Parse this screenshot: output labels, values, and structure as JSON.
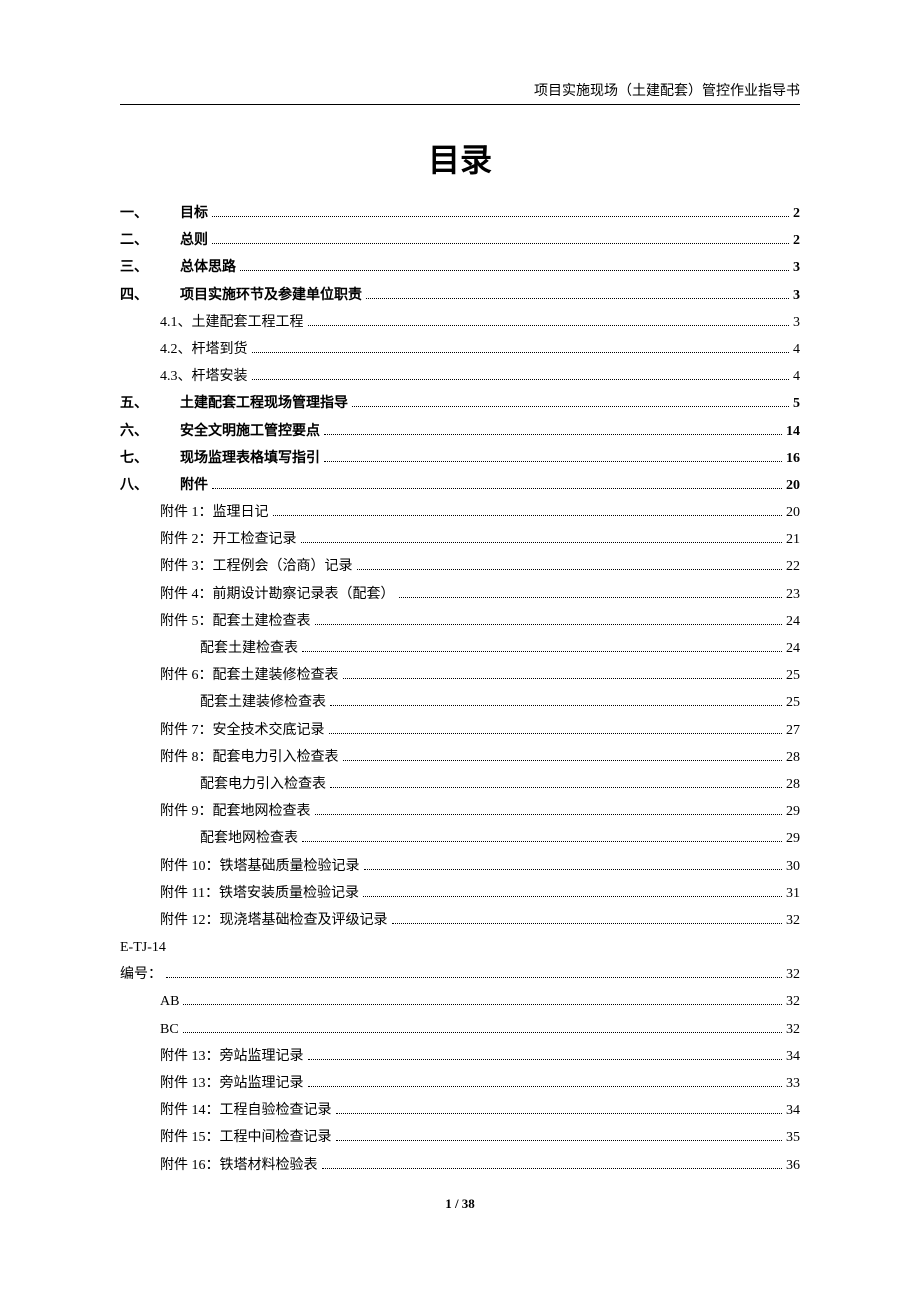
{
  "header": "项目实施现场（土建配套）管控作业指导书",
  "title": "目录",
  "footer": "1 / 38",
  "toc": [
    {
      "indent": 0,
      "bold": true,
      "prefix": "一、",
      "label": "目标",
      "page": "2"
    },
    {
      "indent": 0,
      "bold": true,
      "prefix": "二、",
      "label": "总则",
      "page": "2"
    },
    {
      "indent": 0,
      "bold": true,
      "prefix": "三、",
      "label": "总体思路",
      "page": "3"
    },
    {
      "indent": 0,
      "bold": true,
      "prefix": "四、",
      "label": "项目实施环节及参建单位职责",
      "page": "3"
    },
    {
      "indent": 1,
      "bold": false,
      "prefix": "",
      "label": "4.1、土建配套工程工程",
      "page": "3"
    },
    {
      "indent": 1,
      "bold": false,
      "prefix": "",
      "label": "4.2、杆塔到货",
      "page": "4"
    },
    {
      "indent": 1,
      "bold": false,
      "prefix": "",
      "label": "4.3、杆塔安装",
      "page": "4"
    },
    {
      "indent": 0,
      "bold": true,
      "prefix": "五、",
      "label": "土建配套工程现场管理指导",
      "page": "5"
    },
    {
      "indent": 0,
      "bold": true,
      "prefix": "六、",
      "label": "安全文明施工管控要点",
      "page": "14"
    },
    {
      "indent": 0,
      "bold": true,
      "prefix": "七、",
      "label": "现场监理表格填写指引",
      "page": "16"
    },
    {
      "indent": 0,
      "bold": true,
      "prefix": "八、",
      "label": "附件",
      "page": "20"
    },
    {
      "indent": 1,
      "bold": false,
      "prefix": "",
      "label": "附件 1：监理日记",
      "page": "20"
    },
    {
      "indent": 1,
      "bold": false,
      "prefix": "",
      "label": "附件 2：开工检查记录",
      "page": "21"
    },
    {
      "indent": 1,
      "bold": false,
      "prefix": "",
      "label": "附件 3：工程例会（洽商）记录",
      "page": "22"
    },
    {
      "indent": 1,
      "bold": false,
      "prefix": "",
      "label": "附件 4：前期设计勘察记录表（配套）",
      "page": "23"
    },
    {
      "indent": 1,
      "bold": false,
      "prefix": "",
      "label": "附件 5：配套土建检查表",
      "page": "24"
    },
    {
      "indent": 2,
      "bold": false,
      "prefix": "",
      "label": "配套土建检查表",
      "page": "24"
    },
    {
      "indent": 1,
      "bold": false,
      "prefix": "",
      "label": "附件 6：配套土建装修检查表",
      "page": "25"
    },
    {
      "indent": 2,
      "bold": false,
      "prefix": "",
      "label": "配套土建装修检查表",
      "page": "25"
    },
    {
      "indent": 1,
      "bold": false,
      "prefix": "",
      "label": "附件 7：安全技术交底记录",
      "page": "27"
    },
    {
      "indent": 1,
      "bold": false,
      "prefix": "",
      "label": "附件 8：配套电力引入检查表",
      "page": "28"
    },
    {
      "indent": 2,
      "bold": false,
      "prefix": "",
      "label": "配套电力引入检查表",
      "page": "28"
    },
    {
      "indent": 1,
      "bold": false,
      "prefix": "",
      "label": "附件 9：配套地网检查表",
      "page": "29"
    },
    {
      "indent": 2,
      "bold": false,
      "prefix": "",
      "label": "配套地网检查表",
      "page": "29"
    },
    {
      "indent": 1,
      "bold": false,
      "prefix": "",
      "label": "附件 10：铁塔基础质量检验记录",
      "page": "30"
    },
    {
      "indent": 1,
      "bold": false,
      "prefix": "",
      "label": "附件 11：铁塔安装质量检验记录",
      "page": "31"
    },
    {
      "indent": 1,
      "bold": false,
      "prefix": "",
      "label": "附件 12：现浇塔基础检查及评级记录",
      "page": "32"
    },
    {
      "indent": 0,
      "bold": false,
      "prefix": "",
      "label": "E-TJ-14",
      "page": "",
      "nodots": true
    },
    {
      "indent": 0,
      "bold": false,
      "prefix": "",
      "label": "编号：",
      "page": "32"
    },
    {
      "indent": 1,
      "bold": false,
      "prefix": "",
      "label": "AB",
      "page": "32"
    },
    {
      "indent": 1,
      "bold": false,
      "prefix": "",
      "label": "BC",
      "page": "32"
    },
    {
      "indent": 1,
      "bold": false,
      "prefix": "",
      "label": "附件 13：旁站监理记录",
      "page": "34"
    },
    {
      "indent": 1,
      "bold": false,
      "prefix": "",
      "label": "附件 13：旁站监理记录",
      "page": "33"
    },
    {
      "indent": 1,
      "bold": false,
      "prefix": "",
      "label": "附件 14：工程自验检查记录",
      "page": "34"
    },
    {
      "indent": 1,
      "bold": false,
      "prefix": "",
      "label": "附件 15：工程中间检查记录",
      "page": "35"
    },
    {
      "indent": 1,
      "bold": false,
      "prefix": "",
      "label": "附件 16：铁塔材料检验表",
      "page": "36"
    }
  ]
}
